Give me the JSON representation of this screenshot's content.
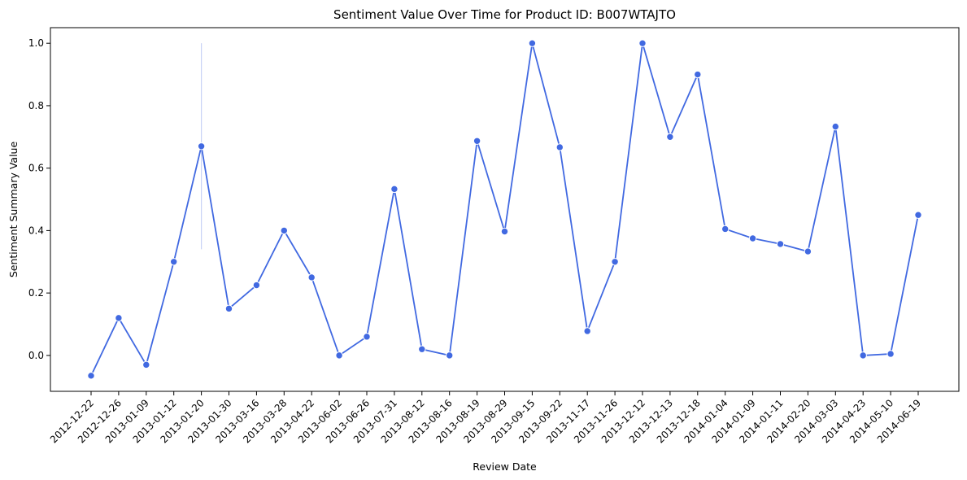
{
  "chart_data": {
    "type": "line",
    "title": "Sentiment Value Over Time for Product ID: B007WTAJTO",
    "xlabel": "Review Date",
    "ylabel": "Sentiment Summary Value",
    "categories": [
      "2012-12-22",
      "2012-12-26",
      "2013-01-09",
      "2013-01-12",
      "2013-01-20",
      "2013-01-30",
      "2013-03-16",
      "2013-03-28",
      "2013-04-22",
      "2013-06-02",
      "2013-06-26",
      "2013-07-31",
      "2013-08-12",
      "2013-08-16",
      "2013-08-19",
      "2013-08-29",
      "2013-09-15",
      "2013-09-22",
      "2013-11-17",
      "2013-11-26",
      "2013-12-12",
      "2013-12-13",
      "2013-12-18",
      "2014-01-04",
      "2014-01-09",
      "2014-01-11",
      "2014-02-20",
      "2014-03-03",
      "2014-04-23",
      "2014-05-10",
      "2014-06-19"
    ],
    "series": [
      {
        "values": [
          -0.065,
          0.12,
          -0.03,
          0.3,
          0.67,
          0.15,
          0.225,
          0.4,
          0.25,
          0.0,
          0.06,
          0.533,
          0.02,
          0.0,
          0.687,
          0.397,
          1.0,
          0.667,
          0.078,
          0.3,
          1.0,
          0.7,
          0.9,
          0.405,
          0.375,
          0.357,
          0.333,
          0.733,
          0.0,
          0.005,
          0.45
        ],
        "color": "#4169e1"
      }
    ],
    "error_bars": [
      {
        "category": "2013-01-20",
        "low": 0.34,
        "high": 1.0,
        "color": "#c9d3f6"
      }
    ],
    "yticks": [
      0.0,
      0.2,
      0.4,
      0.6,
      0.8,
      1.0
    ],
    "ytick_labels": [
      "0.0",
      "0.2",
      "0.4",
      "0.6",
      "0.8",
      "1.0"
    ],
    "ylim": [
      -0.115,
      1.05
    ],
    "grid": false,
    "marker": "circle"
  }
}
